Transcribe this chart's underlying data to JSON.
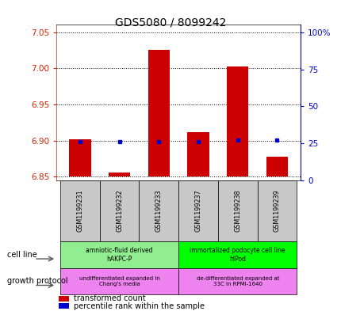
{
  "title": "GDS5080 / 8099242",
  "samples": [
    "GSM1199231",
    "GSM1199232",
    "GSM1199233",
    "GSM1199237",
    "GSM1199238",
    "GSM1199239"
  ],
  "transformed_count": [
    6.902,
    6.856,
    7.025,
    6.912,
    7.002,
    6.878
  ],
  "percentile_rank_values": [
    26,
    26,
    26,
    26,
    27,
    27
  ],
  "red_bar_bottom": 6.85,
  "ylim_left": [
    6.845,
    7.06
  ],
  "ylim_right": [
    0,
    105
  ],
  "yticks_left": [
    6.85,
    6.9,
    6.95,
    7.0,
    7.05
  ],
  "yticks_right": [
    0,
    25,
    50,
    75,
    100
  ],
  "ytick_labels_right": [
    "0",
    "25",
    "50",
    "75",
    "100%"
  ],
  "cell_line_labels": [
    "amniotic-fluid derived\nhAKPC-P",
    "immortalized podocyte cell line\nhIPod"
  ],
  "cell_line_colors": [
    "#90EE90",
    "#00FF00"
  ],
  "growth_protocol_labels": [
    "undifferentiated expanded in\nChang's media",
    "de-differentiated expanded at\n33C in RPMI-1640"
  ],
  "growth_protocol_color": "#EE82EE",
  "bar_color": "#CC0000",
  "dot_color": "#0000CC",
  "bg_color": "#C8C8C8",
  "left_tick_color": "#CC2200",
  "right_tick_color": "#0000CC"
}
